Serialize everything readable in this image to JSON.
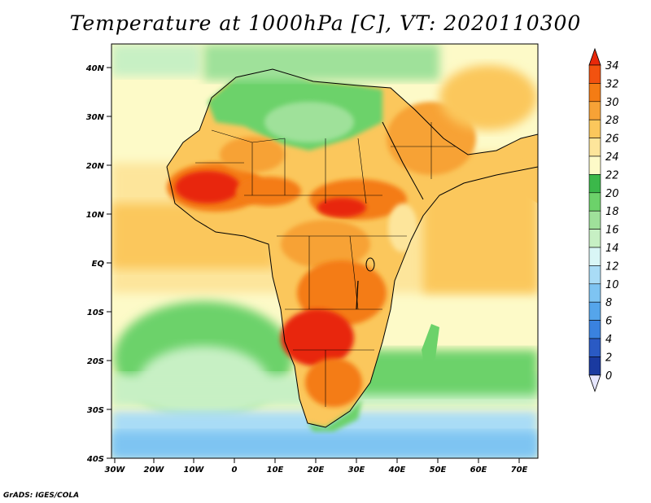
{
  "title": "Temperature at 1000hPa [C], VT: 2020110300",
  "footer": "GrADS: IGES/COLA",
  "lat_labels": [
    "40N",
    "30N",
    "20N",
    "10N",
    "EQ",
    "10S",
    "20S",
    "30S",
    "40S"
  ],
  "lon_labels": [
    "30W",
    "20W",
    "10W",
    "0",
    "10E",
    "20E",
    "30E",
    "40E",
    "50E",
    "60E",
    "70E"
  ],
  "colorbar": {
    "labels": [
      "34",
      "32",
      "30",
      "28",
      "26",
      "24",
      "22",
      "20",
      "18",
      "16",
      "14",
      "12",
      "10",
      "8",
      "6",
      "4",
      "2",
      "0"
    ],
    "colors": [
      "#e8280a",
      "#f2520f",
      "#f47c14",
      "#f7a236",
      "#fbc75c",
      "#fde59b",
      "#fdfac8",
      "#3bb84a",
      "#6cd26a",
      "#9fe19a",
      "#c7f0c4",
      "#d9f6f6",
      "#a9dcf6",
      "#7ec4f2",
      "#55a5eb",
      "#3a82df",
      "#2a5ac4",
      "#1a3aa0",
      "#102070",
      "#e6e6ff"
    ]
  },
  "colors": {
    "ocean_warm": "#fde59b",
    "ocean_mid": "#fdfac8",
    "ocean_cool": "#c7f0c4",
    "ocean_cold": "#a9dcf6",
    "land_hot": "#e8280a",
    "land_warm": "#f7a236",
    "land_mid": "#fbc75c",
    "land_north": "#6cd26a"
  }
}
